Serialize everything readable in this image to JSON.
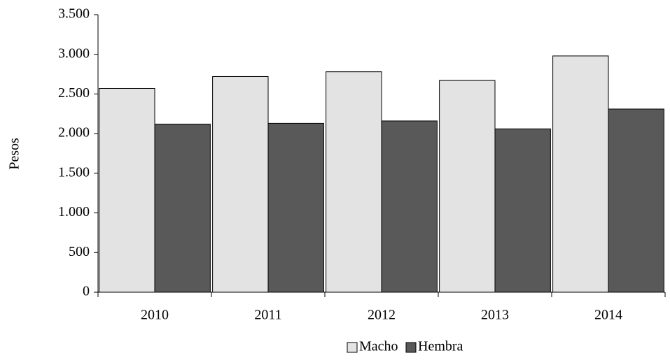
{
  "chart_data": {
    "type": "bar",
    "y_label": "Pesos",
    "categories": [
      "2010",
      "2011",
      "2012",
      "2013",
      "2014"
    ],
    "series": [
      {
        "name": "Macho",
        "color": "#e3e3e3",
        "values": [
          2570,
          2720,
          2780,
          2670,
          2980
        ]
      },
      {
        "name": "Hembra",
        "color": "#595959",
        "values": [
          2120,
          2130,
          2160,
          2060,
          2310
        ]
      }
    ],
    "ylim": [
      0,
      3500
    ],
    "yticks": [
      0,
      500,
      {
        "value": 1000,
        "label": "1.000"
      },
      {
        "value": 1500,
        "label": "1.500"
      },
      {
        "value": 2000,
        "label": "2.000"
      },
      {
        "value": 2500,
        "label": "2.500"
      },
      {
        "value": 3000,
        "label": "3.000"
      },
      {
        "value": 3500,
        "label": "3.500"
      }
    ],
    "grid": false,
    "legend": "bottom"
  }
}
